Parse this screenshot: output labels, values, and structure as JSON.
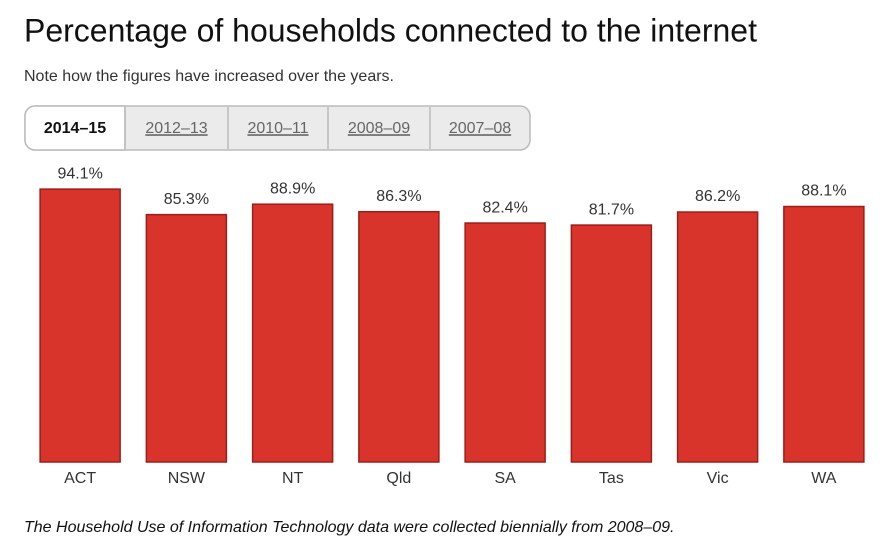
{
  "title": "Percentage of households connected to the internet",
  "subtitle": "Note how the figures have increased over the years.",
  "tabs": [
    "2014–15",
    "2012–13",
    "2010–11",
    "2008–09",
    "2007–08"
  ],
  "active_tab": 0,
  "chart_data": {
    "type": "bar",
    "categories": [
      "ACT",
      "NSW",
      "NT",
      "Qld",
      "SA",
      "Tas",
      "Vic",
      "WA"
    ],
    "values": [
      94.1,
      85.3,
      88.9,
      86.3,
      82.4,
      81.7,
      86.2,
      88.1
    ],
    "value_labels": [
      "94.1%",
      "85.3%",
      "88.9%",
      "86.3%",
      "82.4%",
      "81.7%",
      "86.2%",
      "88.1%"
    ],
    "color": "#d9342b",
    "ylim": [
      0,
      100
    ]
  },
  "footnote": "The Household Use of Information Technology data were collected biennially from 2008–09."
}
